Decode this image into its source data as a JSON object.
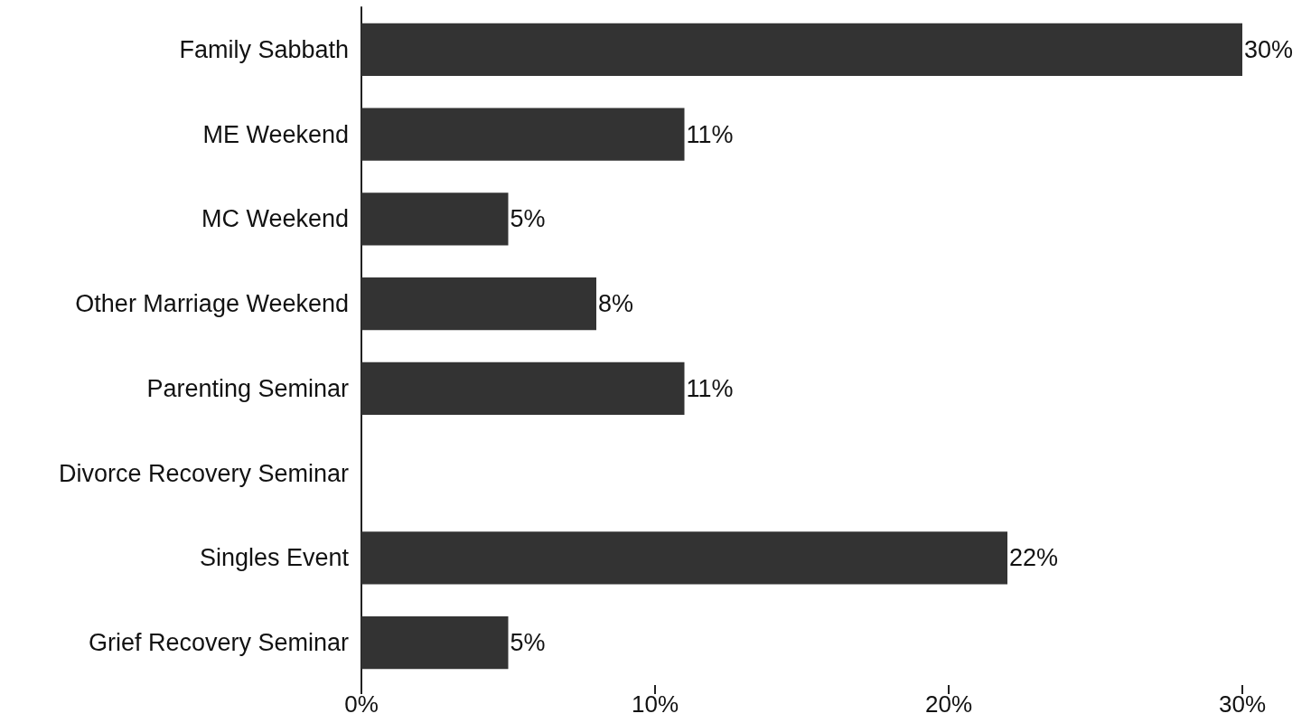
{
  "chart_data": {
    "type": "bar",
    "orientation": "horizontal",
    "categories": [
      "Family Sabbath",
      "ME Weekend",
      "MC Weekend",
      "Other Marriage Weekend",
      "Parenting Seminar",
      "Divorce Recovery Seminar",
      "Singles Event",
      "Grief Recovery Seminar"
    ],
    "values": [
      30,
      11,
      5,
      8,
      11,
      0,
      22,
      5
    ],
    "value_labels": [
      "30%",
      "11%",
      "5%",
      "8%",
      "11%",
      null,
      "22%",
      "5%"
    ],
    "color": "#333333",
    "xlim": [
      0,
      30
    ],
    "xticks": [
      {
        "value": 0,
        "label": "0%"
      },
      {
        "value": 10,
        "label": "10%"
      },
      {
        "value": 20,
        "label": "20%"
      },
      {
        "value": 30,
        "label": "30%"
      }
    ],
    "grid": false
  }
}
